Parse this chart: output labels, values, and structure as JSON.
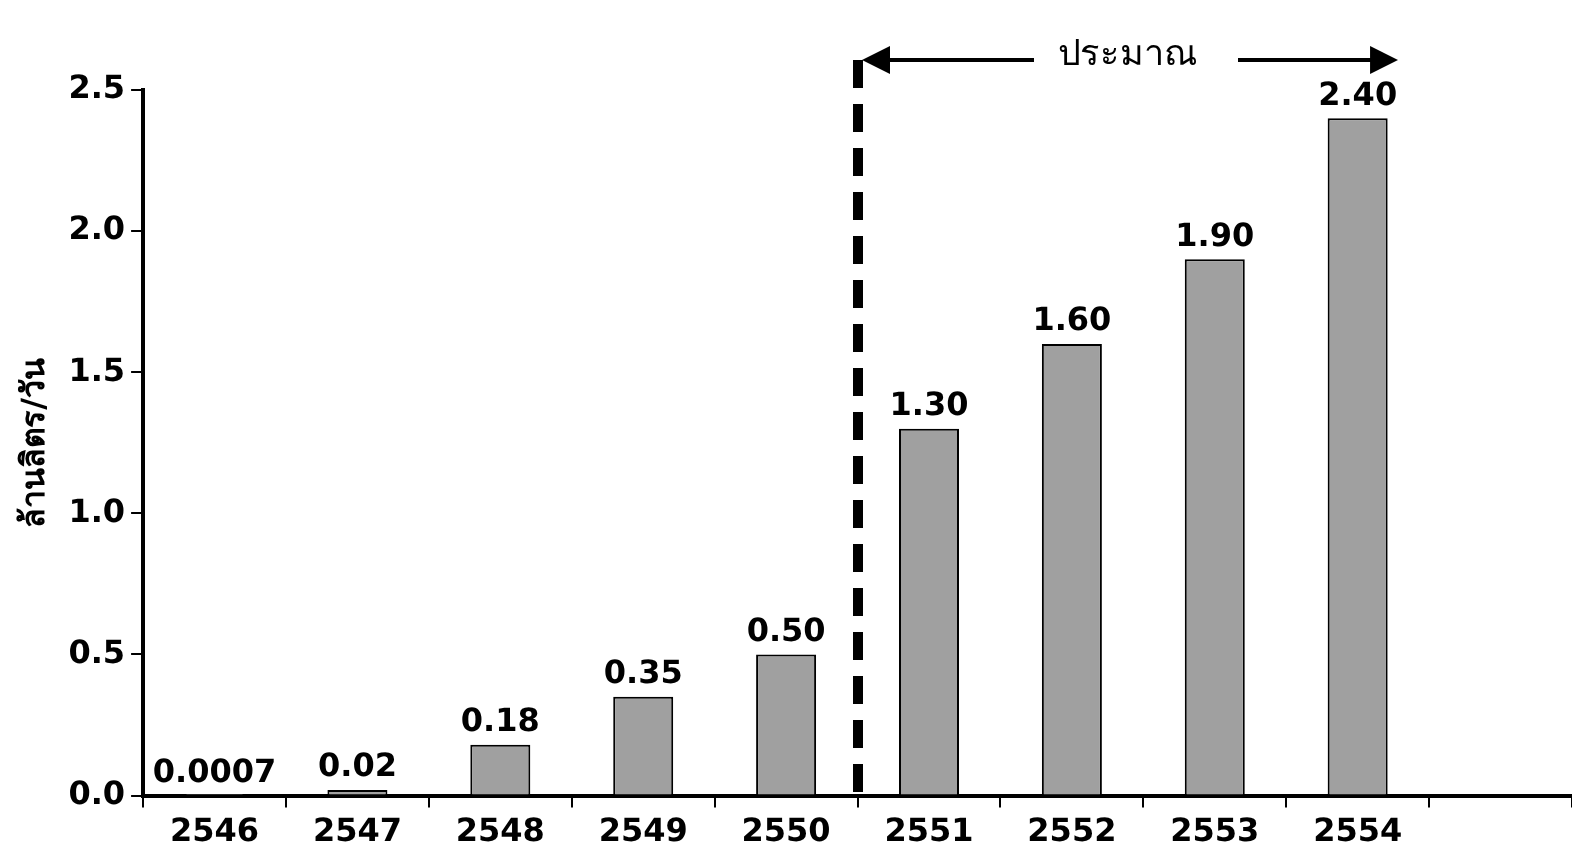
{
  "chart_data": {
    "type": "bar",
    "ylabel": "ล้านลิตร/วัน",
    "categories": [
      "2546",
      "2547",
      "2548",
      "2549",
      "2550",
      "2551",
      "2552",
      "2553",
      "2554",
      null
    ],
    "values": [
      0.0007,
      0.02,
      0.18,
      0.35,
      0.5,
      1.3,
      1.6,
      1.9,
      2.4,
      null
    ],
    "value_labels": [
      "0.0007",
      "0.02",
      "0.18",
      "0.35",
      "0.50",
      "1.30",
      "1.60",
      "1.90",
      "2.40",
      null
    ],
    "color": "#a0a0a0",
    "ylim": [
      0,
      2.5
    ],
    "yticks": [
      {
        "value": 0,
        "label": "0.0"
      },
      {
        "value": 0.5,
        "label": "0.5"
      },
      {
        "value": 1,
        "label": "1.0"
      },
      {
        "value": 1.5,
        "label": "1.5"
      },
      {
        "value": 2,
        "label": "2.0"
      },
      {
        "value": 2.5,
        "label": "2.5"
      }
    ],
    "annotations": [
      "ประมาณ"
    ],
    "grid": false,
    "legend": false
  }
}
